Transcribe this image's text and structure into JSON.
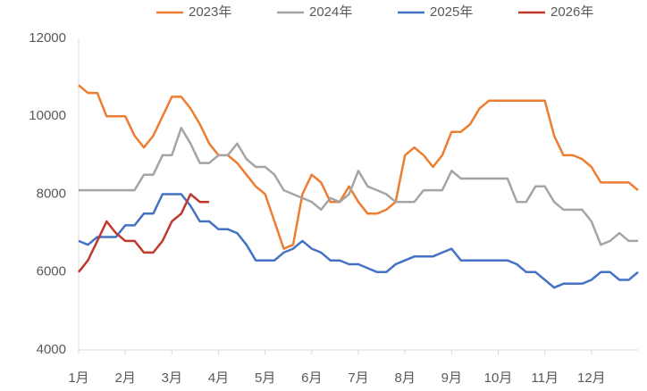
{
  "chart_data": {
    "type": "line",
    "x": [
      1.0,
      1.2,
      1.4,
      1.6,
      1.8,
      2.0,
      2.2,
      2.4,
      2.6,
      2.8,
      3.0,
      3.2,
      3.4,
      3.6,
      3.8,
      4.0,
      4.2,
      4.4,
      4.6,
      4.8,
      5.0,
      5.2,
      5.4,
      5.6,
      5.8,
      6.0,
      6.2,
      6.4,
      6.6,
      6.8,
      7.0,
      7.2,
      7.4,
      7.6,
      7.8,
      8.0,
      8.2,
      8.4,
      8.6,
      8.8,
      9.0,
      9.2,
      9.4,
      9.6,
      9.8,
      10.0,
      10.2,
      10.4,
      10.6,
      10.8,
      11.0,
      11.2,
      11.4,
      11.6,
      11.8,
      12.0,
      12.2,
      12.4,
      12.6,
      12.8,
      13.0
    ],
    "series": [
      {
        "name": "2023年",
        "color": "#ed7d31",
        "values": [
          10800,
          10600,
          10600,
          10000,
          10000,
          10000,
          9500,
          9200,
          9500,
          10000,
          10500,
          10500,
          10200,
          9800,
          9300,
          9000,
          9000,
          8800,
          8500,
          8200,
          8000,
          7300,
          6600,
          6700,
          8000,
          8500,
          8300,
          7800,
          7800,
          8200,
          7800,
          7500,
          7500,
          7600,
          7800,
          9000,
          9200,
          9000,
          8700,
          9000,
          9600,
          9600,
          9800,
          10200,
          10400,
          10400,
          10400,
          10400,
          10400,
          10400,
          10400,
          9500,
          9000,
          9000,
          8900,
          8700,
          8300,
          8300,
          8300,
          8300,
          8100
        ]
      },
      {
        "name": "2024年",
        "color": "#a5a5a5",
        "values": [
          8100,
          8100,
          8100,
          8100,
          8100,
          8100,
          8100,
          8500,
          8500,
          9000,
          9000,
          9700,
          9300,
          8800,
          8800,
          9000,
          9000,
          9300,
          8900,
          8700,
          8700,
          8500,
          8100,
          8000,
          7900,
          7800,
          7600,
          7900,
          7800,
          8000,
          8600,
          8200,
          8100,
          8000,
          7800,
          7800,
          7800,
          8100,
          8100,
          8100,
          8600,
          8400,
          8400,
          8400,
          8400,
          8400,
          8400,
          7800,
          7800,
          8200,
          8200,
          7800,
          7600,
          7600,
          7600,
          7300,
          6700,
          6800,
          7000,
          6800,
          6800
        ]
      },
      {
        "name": "2025年",
        "color": "#4472c4",
        "values": [
          6800,
          6700,
          6900,
          6900,
          6900,
          7200,
          7200,
          7500,
          7500,
          8000,
          8000,
          8000,
          7700,
          7300,
          7300,
          7100,
          7100,
          7000,
          6700,
          6300,
          6300,
          6300,
          6500,
          6600,
          6800,
          6600,
          6500,
          6300,
          6300,
          6200,
          6200,
          6100,
          6000,
          6000,
          6200,
          6300,
          6400,
          6400,
          6400,
          6500,
          6600,
          6300,
          6300,
          6300,
          6300,
          6300,
          6300,
          6200,
          6000,
          6000,
          5800,
          5600,
          5700,
          5700,
          5700,
          5800,
          6000,
          6000,
          5800,
          5800,
          6000
        ]
      },
      {
        "name": "2026年",
        "color": "#c0392b",
        "values": [
          6000,
          6300,
          6800,
          7300,
          7000,
          6800,
          6800,
          6500,
          6500,
          6800,
          7300,
          7500,
          8000,
          7800,
          7800,
          null,
          null,
          null,
          null,
          null,
          null,
          null,
          null,
          null,
          null,
          null,
          null,
          null,
          null,
          null,
          null,
          null,
          null,
          null,
          null,
          null,
          null,
          null,
          null,
          null,
          null,
          null,
          null,
          null,
          null,
          null,
          null,
          null,
          null,
          null,
          null,
          null,
          null,
          null,
          null,
          null,
          null,
          null,
          null,
          null,
          null
        ]
      }
    ],
    "xlim": [
      1,
      13
    ],
    "xticks": [
      {
        "value": 1,
        "label": "1月"
      },
      {
        "value": 2,
        "label": "2月"
      },
      {
        "value": 3,
        "label": "3月"
      },
      {
        "value": 4,
        "label": "4月"
      },
      {
        "value": 5,
        "label": "5月"
      },
      {
        "value": 6,
        "label": "6月"
      },
      {
        "value": 7,
        "label": "7月"
      },
      {
        "value": 8,
        "label": "8月"
      },
      {
        "value": 9,
        "label": "9月"
      },
      {
        "value": 10,
        "label": "10月"
      },
      {
        "value": 11,
        "label": "11月"
      },
      {
        "value": 12,
        "label": "12月"
      }
    ],
    "ylim": [
      4000,
      12000
    ],
    "yticks": [
      4000,
      6000,
      8000,
      10000,
      12000
    ],
    "grid": false,
    "legend": "top"
  }
}
